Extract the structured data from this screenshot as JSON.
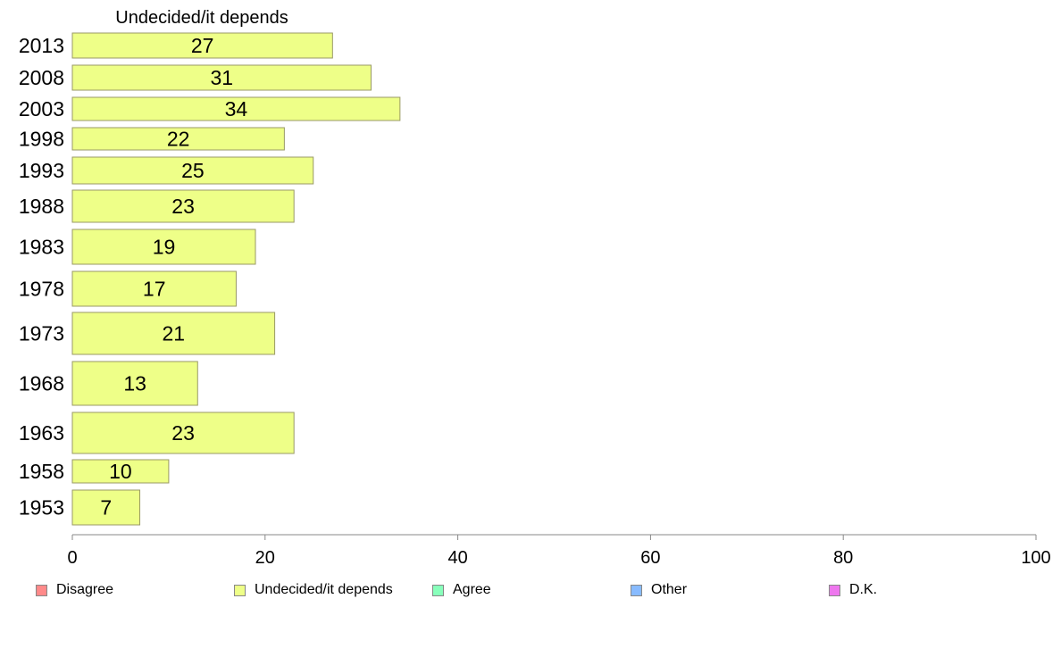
{
  "chart_data": {
    "type": "bar",
    "orientation": "horizontal",
    "title": "Undecided/it depends",
    "categories": [
      "2013",
      "2008",
      "2003",
      "1998",
      "1993",
      "1988",
      "1983",
      "1978",
      "1973",
      "1968",
      "1963",
      "1958",
      "1953"
    ],
    "series": [
      {
        "name": "Undecided/it depends",
        "values": [
          27,
          31,
          34,
          22,
          25,
          23,
          19,
          17,
          21,
          13,
          23,
          10,
          7
        ]
      }
    ],
    "data_labels": [
      "27",
      "31",
      "34",
      "22",
      "25",
      "23",
      "19",
      "17",
      "21",
      "13",
      "23",
      "10",
      "7"
    ],
    "xlim": [
      0,
      100
    ],
    "x_ticks": [
      "0",
      "20",
      "40",
      "60",
      "80",
      "100"
    ],
    "grid": false,
    "legend_position": "bottom"
  },
  "legend": [
    {
      "label": "Disagree",
      "color": "#ff8a8a"
    },
    {
      "label": "Undecided/it depends",
      "color": "#eeff88"
    },
    {
      "label": "Agree",
      "color": "#88ffbb"
    },
    {
      "label": "Other",
      "color": "#88bbff"
    },
    {
      "label": "D.K.",
      "color": "#ee77ee"
    }
  ],
  "colors": {
    "bar_fill": "#eeff88",
    "bar_stroke": "#999966",
    "axis": "#888888"
  }
}
